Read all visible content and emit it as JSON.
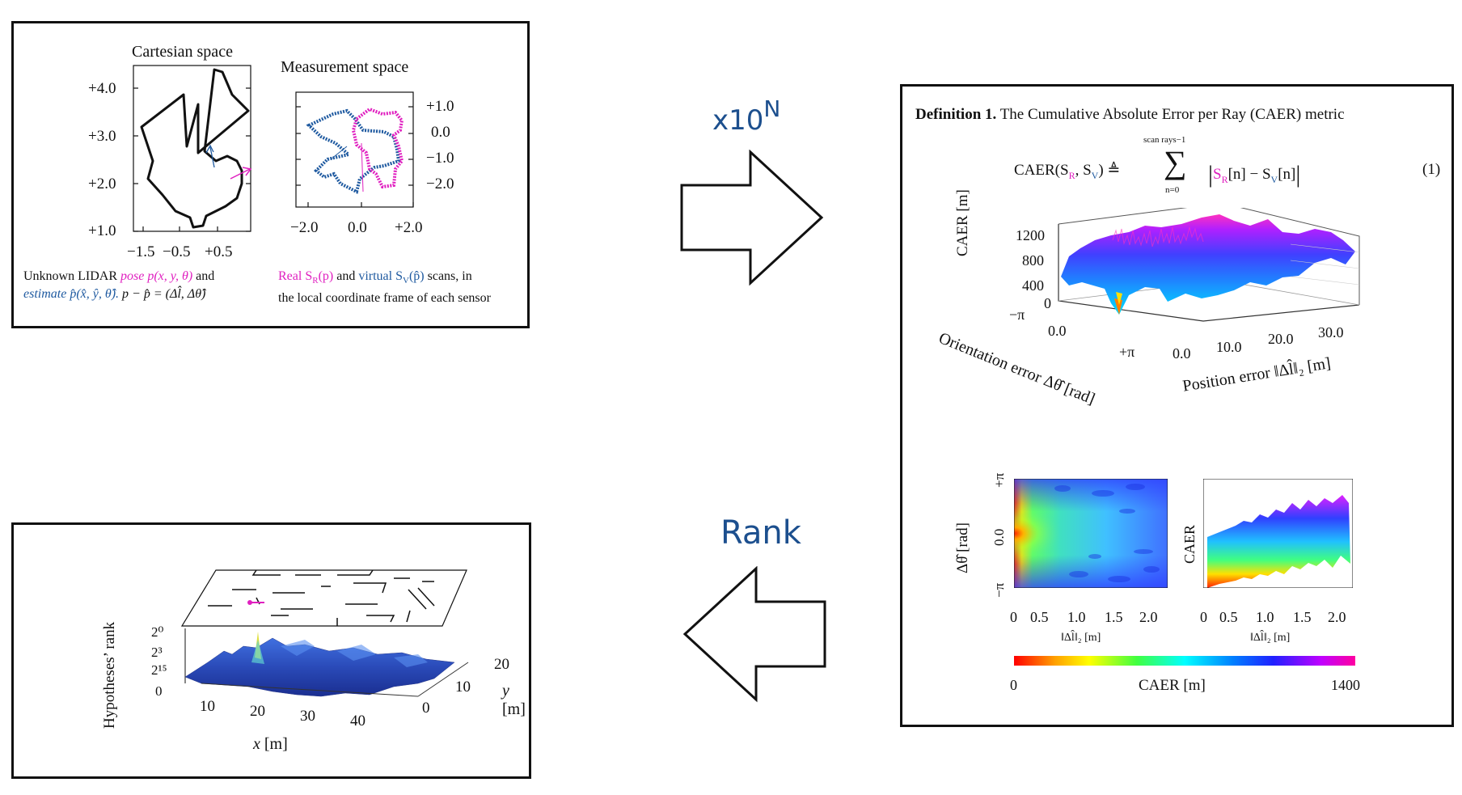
{
  "top_left": {
    "cartesian_title": "Cartesian space",
    "measurement_title": "Measurement space",
    "cart_y_ticks": [
      "+4.0",
      "+3.0",
      "+2.0",
      "+1.0"
    ],
    "cart_x_ticks": [
      "−1.5",
      "−0.5",
      "+0.5"
    ],
    "meas_y_ticks": [
      "+1.0",
      "0.0",
      "−1.0",
      "−2.0"
    ],
    "meas_x_ticks": [
      "−2.0",
      "0.0",
      "+2.0"
    ],
    "caption_left_l1_a": "Unknown LIDAR ",
    "caption_left_l1_b": "pose p(x, y, θ)",
    "caption_left_l1_c": " and",
    "caption_left_l2_a": "estimate p̂(x̂, ŷ, θ̂).",
    "caption_left_l2_b": " p − p̂ = (Δl̂, Δθ̂)",
    "caption_right_l1_a": "Real S",
    "caption_right_l1_b": "R",
    "caption_right_l1_c": "(p)",
    "caption_right_l1_d": " and ",
    "caption_right_l1_e": "virtual S",
    "caption_right_l1_f": "V",
    "caption_right_l1_g": "(p̂)",
    "caption_right_l1_h": " scans, in",
    "caption_right_l2": "the local coordinate frame of each sensor"
  },
  "arrows": {
    "top_label": "x10",
    "top_label_sup": "N",
    "bottom_label": "Rank"
  },
  "right_panel": {
    "definition_bold": "Definition 1.",
    "definition_text": "The Cumulative Absolute Error per Ray (CAER) metric",
    "eq_lhs": "CAER(S",
    "eq_sub_r": "R",
    "eq_comma": ", S",
    "eq_sub_v": "V",
    "eq_close": ") ≜",
    "eq_sum_top": "scan rays−1",
    "eq_sum_symbol": "∑",
    "eq_sum_bottom": "n=0",
    "eq_body_a": "S",
    "eq_body_b": "R",
    "eq_body_c": "[n] − S",
    "eq_body_d": "V",
    "eq_body_e": "[n]",
    "eq_number": "(1)",
    "surf_zlabel": "CAER [m]",
    "surf_z_ticks": [
      "1200",
      "800",
      "400",
      "0"
    ],
    "surf_orient_ticks": [
      "−π",
      "0.0",
      "+π"
    ],
    "surf_pos_ticks": [
      "0.0",
      "10.0",
      "20.0",
      "30.0"
    ],
    "surf_orient_label": "Orientation error Δθ̂ [rad]",
    "surf_pos_label": "Position error ‖Δl̂‖₂ [m]",
    "heat_ylabel": "Δθ̂ [rad]",
    "heat_y_ticks": [
      "+π",
      "0.0",
      "−π"
    ],
    "heat_x_ticks": [
      "0",
      "0.5",
      "1.0",
      "1.5",
      "2.0"
    ],
    "heat_xlabel": "‖Δl̂‖₂ [m]",
    "side_ylabel": "CAER",
    "side_x_ticks": [
      "0",
      "0.5",
      "1.0",
      "1.5",
      "2.0"
    ],
    "side_xlabel": "‖Δl̂‖₂ [m]",
    "colorbar_min": "0",
    "colorbar_label": "CAER [m]",
    "colorbar_max": "1400"
  },
  "bottom_left": {
    "zlabel": "Hypotheses’ rank",
    "z_ticks": [
      "2⁰",
      "2³",
      "2¹⁵",
      "0"
    ],
    "x_ticks": [
      "10",
      "20",
      "30",
      "40"
    ],
    "xlabel_var": "x",
    "xlabel_unit": " [m]",
    "y_ticks": [
      "20",
      "10",
      "0"
    ],
    "ylabel_var": "y",
    "ylabel_unit": " [m]"
  },
  "colors": {
    "pink": "#e020c0",
    "blue": "#1f5aa0",
    "arrow_label": "#1c4f8e",
    "border": "#111111"
  }
}
